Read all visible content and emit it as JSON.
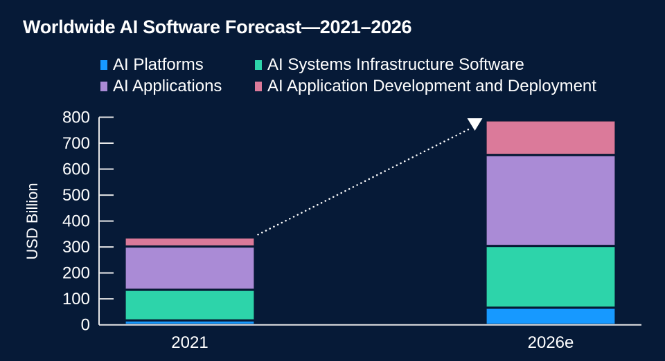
{
  "chart_data": {
    "type": "bar",
    "stacked": true,
    "title": "Worldwide AI Software Forecast—2021–2026",
    "xlabel": "",
    "ylabel": "USD Billion",
    "ylim": [
      0,
      800
    ],
    "yticks": [
      0,
      100,
      200,
      300,
      400,
      500,
      600,
      700,
      800
    ],
    "grid": false,
    "legend_position": "top",
    "categories": [
      "2021",
      "2026e"
    ],
    "series": [
      {
        "name": "AI Platforms",
        "color": "#1799ff",
        "values": [
          17,
          66
        ]
      },
      {
        "name": "AI Systems Infrastructure Software",
        "color": "#2dd4aa",
        "values": [
          118,
          238
        ]
      },
      {
        "name": "AI Applications",
        "color": "#aa8bd6",
        "values": [
          167,
          350
        ]
      },
      {
        "name": "AI Application Development and Deployment",
        "color": "#db7a9a",
        "values": [
          35,
          134
        ]
      }
    ],
    "annotations": [
      {
        "type": "dotted-arrow",
        "from_category": "2021",
        "to_category": "2026e",
        "description": "growth arrow from 2021 total to 2026e total"
      }
    ]
  },
  "legend": {
    "items": [
      {
        "label": "AI Platforms",
        "color": "#1799ff"
      },
      {
        "label": "AI Systems Infrastructure Software",
        "color": "#2dd4aa"
      },
      {
        "label": "AI Applications",
        "color": "#aa8bd6"
      },
      {
        "label": "AI Application Development and Deployment",
        "color": "#db7a9a"
      }
    ]
  },
  "colors": {
    "background": "#061a37",
    "axis": "#e8e8e8",
    "text": "#ffffff"
  }
}
